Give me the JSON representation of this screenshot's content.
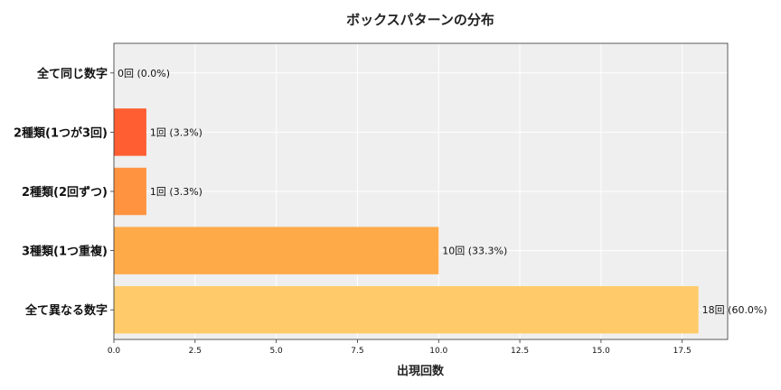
{
  "chart_data": {
    "type": "bar",
    "orientation": "horizontal",
    "title": "ボックスパターンの分布",
    "xlabel": "出現回数",
    "ylabel": "",
    "xlim": [
      0,
      18.9
    ],
    "xticks": [
      "0.0",
      "2.5",
      "5.0",
      "7.5",
      "10.0",
      "12.5",
      "15.0",
      "17.5"
    ],
    "xtick_values": [
      0,
      2.5,
      5,
      7.5,
      10,
      12.5,
      15,
      17.5
    ],
    "grid": true,
    "background": "#efefef",
    "categories": [
      "全て同じ数字",
      "2種類(1つが3回)",
      "2種類(2回ずつ)",
      "3種類(1つ重複)",
      "全て異なる数字"
    ],
    "values": [
      0,
      1,
      1,
      10,
      18
    ],
    "data_labels": [
      "0回 (0.0%)",
      "1回 (3.3%)",
      "1回 (3.3%)",
      "10回 (33.3%)",
      "18回 (60.0%)"
    ],
    "colors": [
      "#ff4422",
      "#ff5e33",
      "#ff9340",
      "#ffaa48",
      "#ffcb6a"
    ]
  }
}
